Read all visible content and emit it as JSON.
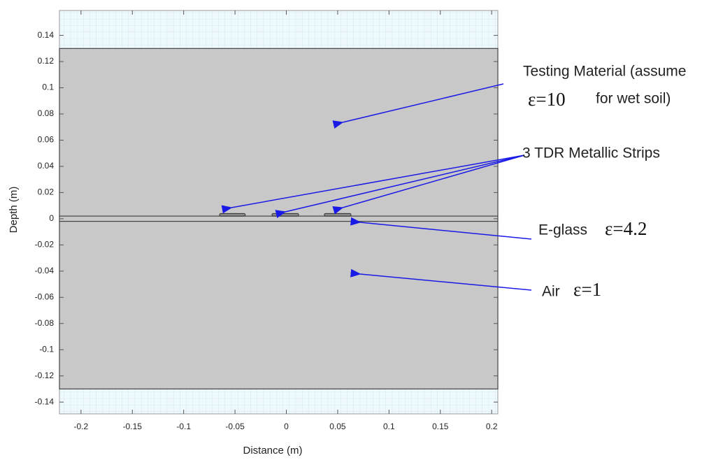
{
  "chart_data": {
    "type": "geometry",
    "xlabel": "Distance (m)",
    "ylabel": "Depth (m)",
    "xlim": [
      -0.221,
      0.206
    ],
    "ylim": [
      -0.149,
      0.159
    ],
    "xticks": [
      -0.2,
      -0.15,
      -0.1,
      -0.05,
      0,
      0.05,
      0.1,
      0.15,
      0.2
    ],
    "yticks": [
      0.14,
      0.12,
      0.1,
      0.08,
      0.06,
      0.04,
      0.02,
      0,
      -0.02,
      -0.04,
      -0.06,
      -0.08,
      -0.1,
      -0.12,
      -0.14
    ],
    "regions": [
      {
        "y": [
          0.13,
          0.002
        ],
        "color": "#c8c8c8"
      },
      {
        "y": [
          0.002,
          -0.002
        ],
        "color": "#c8c8c8"
      },
      {
        "y": [
          -0.002,
          -0.13
        ],
        "color": "#c8c8c8"
      }
    ],
    "strips": [
      {
        "x": [
          -0.065,
          -0.04
        ],
        "y": [
          0.004,
          0.002
        ],
        "color": "#8a8a8a"
      },
      {
        "x": [
          -0.014,
          0.012
        ],
        "y": [
          0.004,
          0.002
        ],
        "color": "#8a8a8a"
      },
      {
        "x": [
          0.037,
          0.063
        ],
        "y": [
          0.004,
          0.002
        ],
        "color": "#8a8a8a"
      }
    ],
    "annotations": [
      "Testing Material  (assume",
      "ε=10",
      "for wet soil)",
      "3 TDR Metallic Strips",
      "E-glass",
      "ε=4.2",
      "Air",
      "ε=1"
    ]
  }
}
